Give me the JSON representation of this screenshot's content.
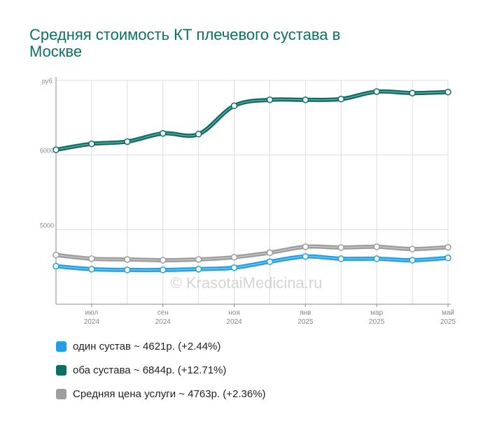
{
  "colors": {
    "title": "#0d7065",
    "one": "#23a0e4",
    "both": "#0d6e66",
    "avg": "#9e9e9e",
    "grid": "#dddddd"
  },
  "chart_data": {
    "type": "line",
    "title": "Средняя стоимость КТ плечевого сустава в Москве",
    "ylabel": "руб.",
    "ylim": [
      4000,
      7000
    ],
    "y_ticks": [
      {
        "value": 5000,
        "label": "5000"
      },
      {
        "value": 6000,
        "label": "6000"
      }
    ],
    "x_ticks": [
      {
        "index": 1,
        "month": "июл",
        "year": "2024"
      },
      {
        "index": 3,
        "month": "сен",
        "year": "2024"
      },
      {
        "index": 5,
        "month": "ноя",
        "year": "2024"
      },
      {
        "index": 7,
        "month": "янв",
        "year": "2025"
      },
      {
        "index": 9,
        "month": "мар",
        "year": "2025"
      },
      {
        "index": 11,
        "month": "май",
        "year": "2025"
      }
    ],
    "watermark": "© KrasotaiMedicina.ru",
    "series": [
      {
        "key": "both",
        "name": "оба сустава",
        "values": [
          6070,
          6150,
          6180,
          6290,
          6280,
          6660,
          6740,
          6740,
          6750,
          6850,
          6830,
          6844
        ]
      },
      {
        "key": "avg",
        "name": "Средняя цена услуги",
        "values": [
          4660,
          4610,
          4600,
          4590,
          4600,
          4630,
          4690,
          4770,
          4760,
          4770,
          4740,
          4763
        ]
      },
      {
        "key": "one",
        "name": "один сустав",
        "values": [
          4510,
          4470,
          4460,
          4460,
          4470,
          4490,
          4570,
          4640,
          4610,
          4610,
          4590,
          4621
        ]
      }
    ]
  },
  "legend": [
    {
      "key": "one",
      "text": "один сустав ~ 4621р. (+2.44%)"
    },
    {
      "key": "both",
      "text": "оба сустава ~ 6844р. (+12.71%)"
    },
    {
      "key": "avg",
      "text": "Средняя цена услуги ~ 4763р. (+2.36%)"
    }
  ]
}
